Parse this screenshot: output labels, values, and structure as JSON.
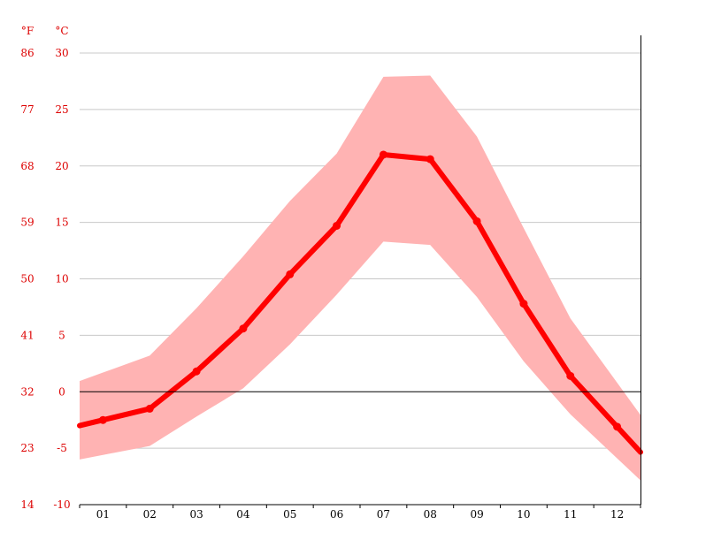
{
  "chart_data": {
    "type": "line",
    "axis_units": {
      "fahrenheit": "°F",
      "celsius": "°C"
    },
    "x": [
      "01",
      "02",
      "03",
      "04",
      "05",
      "06",
      "07",
      "08",
      "09",
      "10",
      "11",
      "12"
    ],
    "y_celsius_ticks": [
      30,
      25,
      20,
      15,
      10,
      5,
      0,
      -5,
      -10
    ],
    "y_fahrenheit_ticks": [
      86,
      77,
      68,
      59,
      50,
      41,
      32,
      23,
      14
    ],
    "ylim": [
      -10,
      30
    ],
    "series": [
      {
        "values": [
          -2.5,
          -1.5,
          1.8,
          5.6,
          10.4,
          14.7,
          21.0,
          20.6,
          15.1,
          7.8,
          1.4,
          -3.1
        ]
      }
    ],
    "band": {
      "upper": [
        1.7,
        3.2,
        7.4,
        12.0,
        16.9,
        21.1,
        27.9,
        28.0,
        22.6,
        14.5,
        6.5,
        0.8
      ],
      "lower": [
        -5.6,
        -4.8,
        -2.2,
        0.3,
        4.2,
        8.6,
        13.3,
        13.0,
        8.4,
        2.7,
        -2.0,
        -5.9
      ]
    },
    "grid": true,
    "colors": {
      "axis_label": "#dd0000",
      "grid": "#c8c8c8",
      "zero_line": "#000000",
      "line": "#ff0000",
      "band": "#ffb3b3",
      "tick_text": "#000000"
    }
  }
}
